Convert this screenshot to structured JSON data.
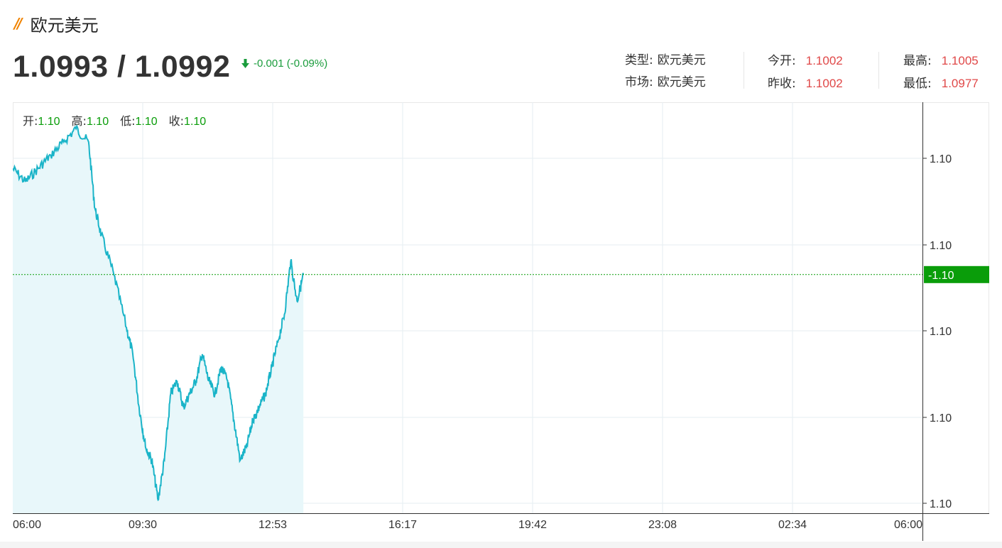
{
  "page": {
    "title": "欧元美元",
    "price": "1.0993 / 1.0992",
    "change": "-0.001 (-0.09%)"
  },
  "stats": {
    "type_label": "类型:",
    "type_value": "欧元美元",
    "market_label": "市场:",
    "market_value": "欧元美元",
    "open_label": "今开:",
    "open_value": "1.1002",
    "prevclose_label": "昨收:",
    "prevclose_value": "1.1002",
    "high_label": "最高:",
    "high_value": "1.1005",
    "low_label": "最低:",
    "low_value": "1.0977"
  },
  "ohlc": {
    "open_label": "开:",
    "open_value": "1.10",
    "high_label": "高:",
    "high_value": "1.10",
    "low_label": "低:",
    "low_value": "1.10",
    "close_label": "收:",
    "close_value": "1.10"
  },
  "colors": {
    "line": "#1ab4c8",
    "area": "#e8f7fa",
    "current_badge": "#0a9d0a",
    "up_down": "#1a9c3c",
    "stat_values": "#e04848"
  },
  "chart_data": {
    "type": "area",
    "x_ticks": [
      "06:00",
      "09:30",
      "12:53",
      "16:17",
      "19:42",
      "23:08",
      "02:34",
      "06:00"
    ],
    "y_ticks": [
      "1.10",
      "1.10",
      "1.10",
      "1.10",
      "1.10"
    ],
    "current_label": "1.10",
    "current_value": 1.0993,
    "ylim": [
      1.0975,
      1.1006
    ],
    "grid": true,
    "series": [
      {
        "x": [
          "06:00",
          "06:20",
          "06:40",
          "07:00",
          "07:20",
          "07:40",
          "08:00",
          "08:10",
          "08:20",
          "08:40",
          "09:00",
          "09:10",
          "09:20",
          "09:30",
          "09:40",
          "09:50",
          "10:00",
          "10:10",
          "10:20",
          "10:30",
          "10:40",
          "10:50",
          "11:00",
          "11:10",
          "11:20",
          "11:30",
          "11:40",
          "11:50",
          "12:00",
          "12:10",
          "12:20",
          "12:30",
          "12:40",
          "12:50",
          "13:00",
          "13:10",
          "13:20",
          "13:30",
          "13:40"
        ],
        "values": [
          1.1001,
          1.1,
          1.1001,
          1.1002,
          1.1003,
          1.1004,
          1.1003,
          1.0998,
          1.0996,
          1.0993,
          1.0989,
          1.0987,
          1.0983,
          1.098,
          1.0979,
          1.0976,
          1.0979,
          1.0984,
          1.0985,
          1.0983,
          1.0984,
          1.0985,
          1.0987,
          1.0985,
          1.0984,
          1.0986,
          1.0985,
          1.0982,
          1.0979,
          1.098,
          1.0982,
          1.0983,
          1.0984,
          1.0986,
          1.0988,
          1.099,
          1.0994,
          1.0991,
          1.0993
        ]
      }
    ]
  }
}
